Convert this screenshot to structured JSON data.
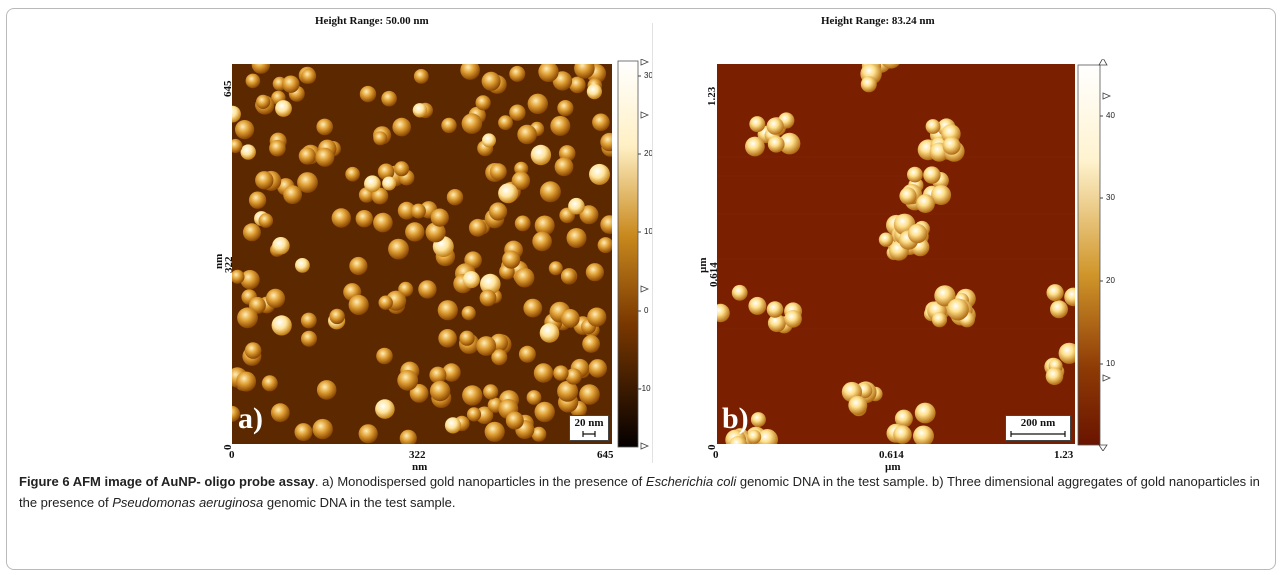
{
  "panel_a": {
    "height_range": "Height Range:  50.00 nm",
    "y_top": "645",
    "y_mid": "322",
    "y_unit": "nm",
    "y_bottom": "0",
    "x_left": "0",
    "x_mid": "322",
    "x_unit": "nm",
    "x_right": "645",
    "colorbar_ticks": [
      "30",
      "20",
      "10",
      "0",
      "-10"
    ],
    "letter": "a)",
    "scale_bar": "20 nm",
    "colors": {
      "low": "#1a0500",
      "mid": "#a45a00",
      "high": "#fff3cf"
    }
  },
  "panel_b": {
    "height_range": "Height Range:  83.24 nm",
    "y_top": "1.23",
    "y_mid": "0.614",
    "y_unit": "µm",
    "y_bottom": "0",
    "x_left": "0",
    "x_mid": "0.614",
    "x_unit": "µm",
    "x_right": "1.23",
    "colorbar_ticks": [
      "40",
      "30",
      "20",
      "10"
    ],
    "letter": "b)",
    "scale_bar": "200 nm",
    "colors": {
      "background": "#7a1f00",
      "high": "#fff3cf"
    }
  },
  "caption": {
    "label": "Figure 6 AFM image of AuNP- oligo probe assay",
    "t1": ". a) Monodispersed gold nanoparticles in the presence of ",
    "i1": "Escherichia coli",
    "t2": " genomic DNA in the test sample. b) Three dimensional aggregates of gold nanoparticles in the presence of ",
    "i2": "Pseudomonas aeruginosa",
    "t3": " genomic DNA in the test sample."
  }
}
